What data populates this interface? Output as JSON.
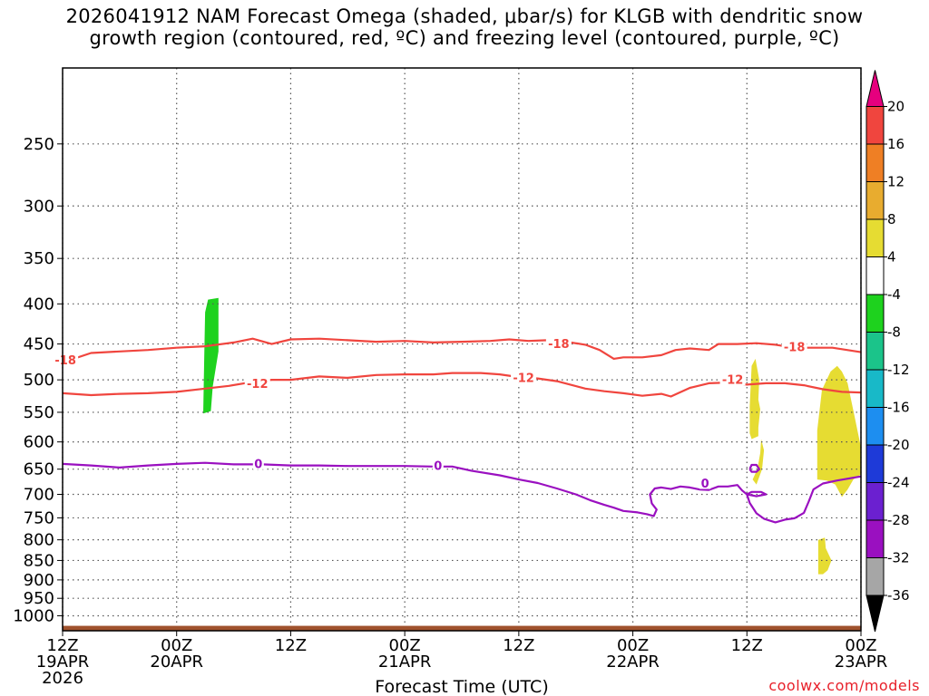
{
  "chart_data": {
    "type": "heatmap",
    "title": [
      "2026041912 NAM Forecast Omega (shaded, μbar/s) for KLGB with dendritic snow",
      "growth region (contoured, red, ºC) and freezing level (contoured, purple, ºC)"
    ],
    "xlabel": "Forecast Time (UTC)",
    "ylabel": "",
    "x_ticks": [
      {
        "h": 0,
        "label": [
          "12Z",
          "19APR",
          "2026"
        ]
      },
      {
        "h": 12,
        "label": [
          "00Z",
          "20APR"
        ]
      },
      {
        "h": 24,
        "label": [
          "12Z"
        ]
      },
      {
        "h": 36,
        "label": [
          "00Z",
          "21APR"
        ]
      },
      {
        "h": 48,
        "label": [
          "12Z"
        ]
      },
      {
        "h": 60,
        "label": [
          "00Z",
          "22APR"
        ]
      },
      {
        "h": 72,
        "label": [
          "12Z"
        ]
      },
      {
        "h": 84,
        "label": [
          "00Z",
          "23APR"
        ]
      }
    ],
    "xlim": [
      0,
      84
    ],
    "y_ticks": [
      250,
      300,
      350,
      400,
      450,
      500,
      550,
      600,
      650,
      700,
      750,
      800,
      850,
      900,
      950,
      1000
    ],
    "ylim": [
      1045,
      200
    ],
    "yscale": "log",
    "grid": true,
    "colorbar": {
      "labels": [
        "20",
        "16",
        "12",
        "8",
        "4",
        "-4",
        "-8",
        "-12",
        "-16",
        "-20",
        "-24",
        "-28",
        "-32",
        "-36"
      ],
      "colors": [
        "#e6007e",
        "#f0453e",
        "#ef7f24",
        "#e8ac2f",
        "#e6dc32",
        "#ffffff",
        "#1ed21e",
        "#1bc48a",
        "#18b9c8",
        "#1d8ef0",
        "#1e3ad8",
        "#6b20d0",
        "#9a10c0",
        "#a6a6a6",
        "#000000"
      ]
    },
    "shaded_regions": [
      {
        "name": "omega-neg-green",
        "color": "#1ed21e",
        "points": [
          [
            14.8,
            552
          ],
          [
            14.9,
            470
          ],
          [
            15.0,
            410
          ],
          [
            15.3,
            395
          ],
          [
            16.4,
            393
          ],
          [
            16.4,
            460
          ],
          [
            15.8,
            510
          ],
          [
            15.6,
            548
          ],
          [
            14.8,
            552
          ]
        ]
      },
      {
        "name": "omega-pos-yellow-1",
        "color": "#e6dc32",
        "points": [
          [
            72.3,
            585
          ],
          [
            72.3,
            540
          ],
          [
            72.5,
            480
          ],
          [
            72.9,
            470
          ],
          [
            73.3,
            500
          ],
          [
            73.2,
            530
          ],
          [
            73.4,
            545
          ],
          [
            73.2,
            575
          ],
          [
            73.2,
            590
          ],
          [
            72.5,
            595
          ],
          [
            72.3,
            585
          ]
        ]
      },
      {
        "name": "omega-pos-yellow-2",
        "color": "#e6dc32",
        "points": [
          [
            73.5,
            595
          ],
          [
            73.4,
            620
          ],
          [
            73.1,
            650
          ],
          [
            72.6,
            670
          ],
          [
            73.0,
            680
          ],
          [
            73.6,
            650
          ],
          [
            73.8,
            615
          ],
          [
            73.5,
            595
          ]
        ]
      },
      {
        "name": "omega-pos-yellow-3",
        "color": "#e6dc32",
        "points": [
          [
            79.4,
            670
          ],
          [
            79.4,
            580
          ],
          [
            79.9,
            515
          ],
          [
            80.8,
            488
          ],
          [
            81.5,
            480
          ],
          [
            82.0,
            488
          ],
          [
            82.6,
            505
          ],
          [
            83.3,
            555
          ],
          [
            84.0,
            610
          ],
          [
            84.0,
            660
          ],
          [
            83.2,
            670
          ],
          [
            82.6,
            690
          ],
          [
            82.0,
            705
          ],
          [
            81.3,
            680
          ],
          [
            80.4,
            672
          ],
          [
            79.4,
            670
          ]
        ]
      },
      {
        "name": "omega-pos-yellow-4",
        "color": "#e6dc32",
        "points": [
          [
            79.5,
            885
          ],
          [
            79.5,
            800
          ],
          [
            80.2,
            795
          ],
          [
            80.3,
            820
          ],
          [
            80.9,
            850
          ],
          [
            80.5,
            875
          ],
          [
            80.0,
            885
          ],
          [
            79.5,
            885
          ]
        ]
      }
    ],
    "series": [
      {
        "kind": "contour",
        "color": "#f0453e",
        "label": "-18",
        "points": [
          [
            0,
            475
          ],
          [
            3,
            462
          ],
          [
            6,
            460
          ],
          [
            9,
            458
          ],
          [
            12,
            455
          ],
          [
            15,
            453
          ],
          [
            18,
            448
          ],
          [
            20,
            443
          ],
          [
            22,
            450
          ],
          [
            24,
            444
          ],
          [
            27,
            443
          ],
          [
            30,
            445
          ],
          [
            33,
            447
          ],
          [
            36,
            446
          ],
          [
            39,
            448
          ],
          [
            42,
            447
          ],
          [
            45,
            446
          ],
          [
            47,
            444
          ],
          [
            49,
            446
          ],
          [
            51,
            445
          ],
          [
            53,
            447
          ],
          [
            55,
            451
          ],
          [
            56.5,
            458
          ],
          [
            58,
            470
          ],
          [
            59,
            468
          ],
          [
            61,
            468
          ],
          [
            63,
            465
          ],
          [
            64.5,
            458
          ],
          [
            66,
            456
          ],
          [
            68,
            458
          ],
          [
            69,
            450
          ],
          [
            71,
            450
          ],
          [
            73,
            449
          ],
          [
            75,
            451
          ],
          [
            77,
            455
          ],
          [
            79,
            455
          ],
          [
            81,
            455
          ],
          [
            84,
            461
          ]
        ]
      },
      {
        "kind": "contour",
        "color": "#f0453e",
        "label": "-12",
        "points": [
          [
            0,
            520
          ],
          [
            3,
            523
          ],
          [
            6,
            521
          ],
          [
            9,
            520
          ],
          [
            12,
            518
          ],
          [
            15,
            513
          ],
          [
            17.5,
            509
          ],
          [
            20,
            503
          ],
          [
            22,
            500
          ],
          [
            24,
            500
          ],
          [
            27,
            495
          ],
          [
            30,
            497
          ],
          [
            33,
            493
          ],
          [
            36,
            492
          ],
          [
            39,
            492
          ],
          [
            41,
            490
          ],
          [
            44,
            490
          ],
          [
            46,
            492
          ],
          [
            48,
            496
          ],
          [
            50,
            498
          ],
          [
            52,
            502
          ],
          [
            55,
            513
          ],
          [
            57,
            517
          ],
          [
            59,
            520
          ],
          [
            61,
            524
          ],
          [
            63,
            521
          ],
          [
            64,
            525
          ],
          [
            66,
            512
          ],
          [
            68,
            505
          ],
          [
            70,
            504
          ],
          [
            72,
            507
          ],
          [
            74,
            505
          ],
          [
            76,
            505
          ],
          [
            78,
            508
          ],
          [
            80,
            514
          ],
          [
            82,
            518
          ],
          [
            84,
            519
          ]
        ]
      },
      {
        "kind": "contour",
        "color": "#9a10c0",
        "label": "0",
        "points": [
          [
            0,
            640
          ],
          [
            3,
            643
          ],
          [
            6,
            647
          ],
          [
            9,
            643
          ],
          [
            12,
            640
          ],
          [
            15,
            638
          ],
          [
            18,
            641
          ],
          [
            21,
            641
          ],
          [
            24,
            643
          ],
          [
            27,
            643
          ],
          [
            30,
            644
          ],
          [
            33,
            644
          ],
          [
            36,
            644
          ],
          [
            39,
            645
          ],
          [
            41,
            645
          ],
          [
            43,
            653
          ],
          [
            46,
            662
          ],
          [
            48,
            670
          ],
          [
            50,
            677
          ],
          [
            52,
            688
          ],
          [
            54,
            700
          ],
          [
            55.5,
            712
          ],
          [
            57,
            722
          ],
          [
            58,
            728
          ],
          [
            59,
            735
          ],
          [
            60.5,
            738
          ],
          [
            61.5,
            742
          ],
          [
            62.2,
            746
          ],
          [
            62.5,
            732
          ],
          [
            62,
            719
          ],
          [
            61.8,
            700
          ],
          [
            62.3,
            688
          ],
          [
            63,
            686
          ],
          [
            64,
            689
          ],
          [
            65,
            684
          ],
          [
            66,
            686
          ],
          [
            67,
            690
          ],
          [
            68,
            691
          ],
          [
            69,
            684
          ],
          [
            70,
            684
          ],
          [
            71,
            681
          ],
          [
            71.5,
            692
          ],
          [
            72,
            700
          ],
          [
            73,
            704
          ],
          [
            74,
            700
          ],
          [
            73.5,
            695
          ],
          [
            72.5,
            695
          ],
          [
            72,
            700
          ],
          [
            72.3,
            718
          ],
          [
            73,
            740
          ],
          [
            73.8,
            752
          ],
          [
            75,
            760
          ],
          [
            76,
            754
          ],
          [
            77,
            751
          ],
          [
            78,
            739
          ],
          [
            78.5,
            715
          ],
          [
            79,
            690
          ],
          [
            80,
            678
          ],
          [
            81.5,
            672
          ],
          [
            84,
            664
          ]
        ]
      },
      {
        "kind": "contour",
        "color": "#9a10c0",
        "label": "",
        "points": [
          [
            72.3,
            650
          ],
          [
            72.5,
            642
          ],
          [
            73,
            642
          ],
          [
            73.3,
            650
          ],
          [
            73,
            655
          ],
          [
            72.5,
            655
          ],
          [
            72.3,
            650
          ]
        ]
      }
    ],
    "contour_labels": [
      {
        "text": "-18",
        "color": "#f0453e",
        "x": 0.3,
        "y": 472
      },
      {
        "text": "-18",
        "color": "#f0453e",
        "x": 52.2,
        "y": 450
      },
      {
        "text": "-18",
        "color": "#f0453e",
        "x": 77.0,
        "y": 454
      },
      {
        "text": "-12",
        "color": "#f0453e",
        "x": 20.5,
        "y": 506
      },
      {
        "text": "-12",
        "color": "#f0453e",
        "x": 48.5,
        "y": 497
      },
      {
        "text": "-12",
        "color": "#f0453e",
        "x": 70.5,
        "y": 500
      },
      {
        "text": "0",
        "color": "#9a10c0",
        "x": 20.6,
        "y": 640
      },
      {
        "text": "0",
        "color": "#9a10c0",
        "x": 39.5,
        "y": 644
      },
      {
        "text": "0",
        "color": "#9a10c0",
        "x": 67.6,
        "y": 678
      }
    ],
    "terrain": {
      "color": "#a0522d",
      "top_pressure": 1030
    }
  },
  "credit": "coolwx.com/models"
}
